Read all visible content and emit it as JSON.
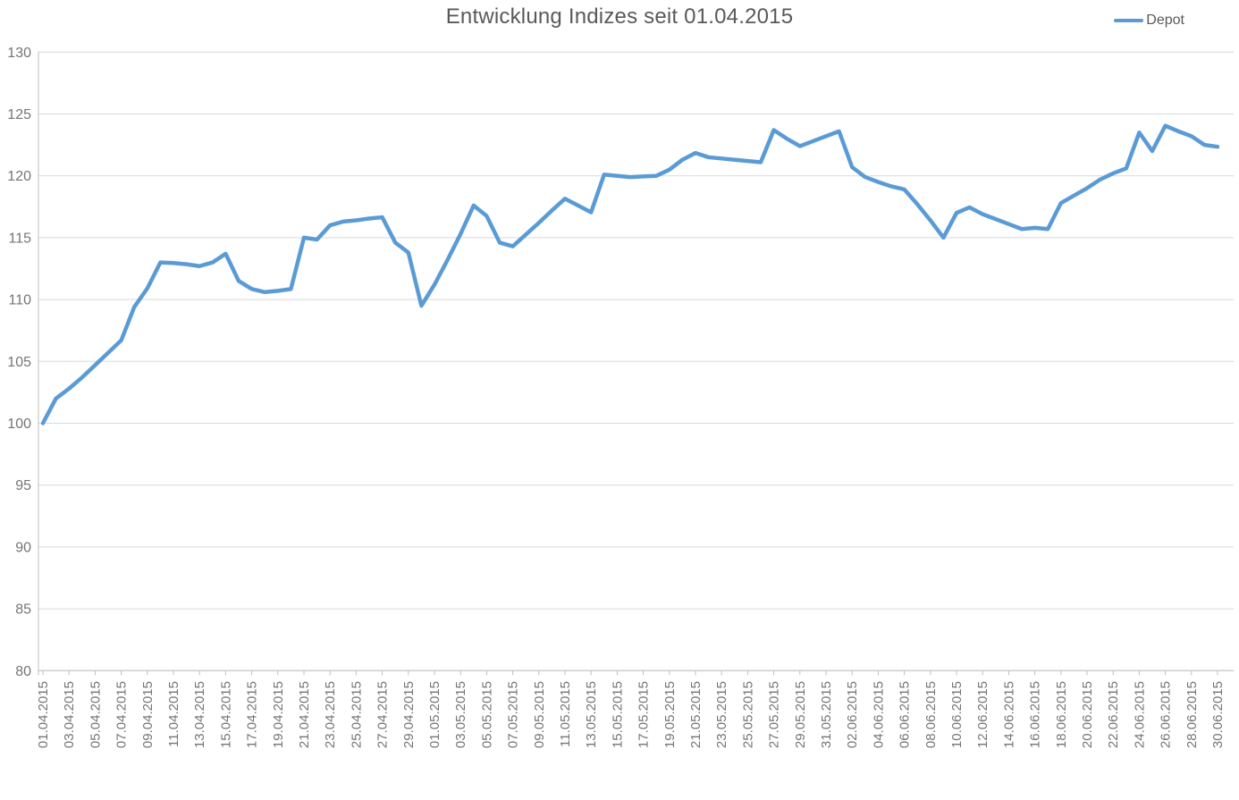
{
  "chart_data": {
    "type": "line",
    "title": "Entwicklung Indizes seit 01.04.2015",
    "xlabel": "",
    "ylabel": "",
    "ylim": [
      80,
      130
    ],
    "ytick_step": 5,
    "grid": "horizontal",
    "legend_position": "top-right",
    "x_label_every": 2,
    "x_label_rotation": -90,
    "x": [
      "01.04.2015",
      "02.04.2015",
      "03.04.2015",
      "04.04.2015",
      "05.04.2015",
      "06.04.2015",
      "07.04.2015",
      "08.04.2015",
      "09.04.2015",
      "10.04.2015",
      "11.04.2015",
      "12.04.2015",
      "13.04.2015",
      "14.04.2015",
      "15.04.2015",
      "16.04.2015",
      "17.04.2015",
      "18.04.2015",
      "19.04.2015",
      "20.04.2015",
      "21.04.2015",
      "22.04.2015",
      "23.04.2015",
      "24.04.2015",
      "25.04.2015",
      "26.04.2015",
      "27.04.2015",
      "28.04.2015",
      "29.04.2015",
      "30.04.2015",
      "01.05.2015",
      "02.05.2015",
      "03.05.2015",
      "04.05.2015",
      "05.05.2015",
      "06.05.2015",
      "07.05.2015",
      "08.05.2015",
      "09.05.2015",
      "10.05.2015",
      "11.05.2015",
      "12.05.2015",
      "13.05.2015",
      "14.05.2015",
      "15.05.2015",
      "16.05.2015",
      "17.05.2015",
      "18.05.2015",
      "19.05.2015",
      "20.05.2015",
      "21.05.2015",
      "22.05.2015",
      "23.05.2015",
      "24.05.2015",
      "25.05.2015",
      "26.05.2015",
      "27.05.2015",
      "28.05.2015",
      "29.05.2015",
      "30.05.2015",
      "31.05.2015",
      "01.06.2015",
      "02.06.2015",
      "03.06.2015",
      "04.06.2015",
      "05.06.2015",
      "06.06.2015",
      "07.06.2015",
      "08.06.2015",
      "09.06.2015",
      "10.06.2015",
      "11.06.2015",
      "12.06.2015",
      "13.06.2015",
      "14.06.2015",
      "15.06.2015",
      "16.06.2015",
      "17.06.2015",
      "18.06.2015",
      "19.06.2015",
      "20.06.2015",
      "21.06.2015",
      "22.06.2015",
      "23.06.2015",
      "24.06.2015",
      "25.06.2015",
      "26.06.2015",
      "27.06.2015",
      "28.06.2015",
      "29.06.2015",
      "30.06.2015"
    ],
    "series": [
      {
        "name": "Depot",
        "values": [
          100.0,
          102.0,
          102.8,
          103.7,
          104.7,
          105.7,
          106.7,
          109.4,
          110.9,
          113.0,
          112.95,
          112.85,
          112.7,
          113.0,
          113.7,
          111.5,
          110.85,
          110.6,
          110.7,
          110.85,
          115.0,
          114.85,
          116.0,
          116.3,
          116.4,
          116.55,
          116.65,
          114.6,
          113.8,
          109.5,
          111.2,
          113.2,
          115.3,
          117.6,
          116.75,
          114.6,
          114.3,
          115.25,
          116.2,
          117.2,
          118.15,
          117.6,
          117.05,
          120.1,
          120.0,
          119.9,
          119.95,
          120.0,
          120.5,
          121.3,
          121.85,
          121.5,
          121.4,
          121.3,
          121.2,
          121.1,
          123.7,
          123.0,
          122.4,
          122.8,
          123.2,
          123.6,
          120.7,
          119.9,
          119.5,
          119.15,
          118.9,
          117.7,
          116.4,
          115.0,
          117.0,
          117.45,
          116.9,
          116.5,
          116.1,
          115.7,
          115.8,
          115.7,
          117.8,
          118.4,
          119.0,
          119.7,
          120.2,
          120.6,
          123.5,
          122.0,
          124.05,
          123.6,
          123.2,
          122.5,
          122.35
        ]
      }
    ],
    "colors": {
      "line": "#5B9BD5",
      "gridline": "#D9D9D9",
      "axis": "#BFBFBF",
      "title_text": "#595959",
      "label_text": "#757575"
    }
  }
}
